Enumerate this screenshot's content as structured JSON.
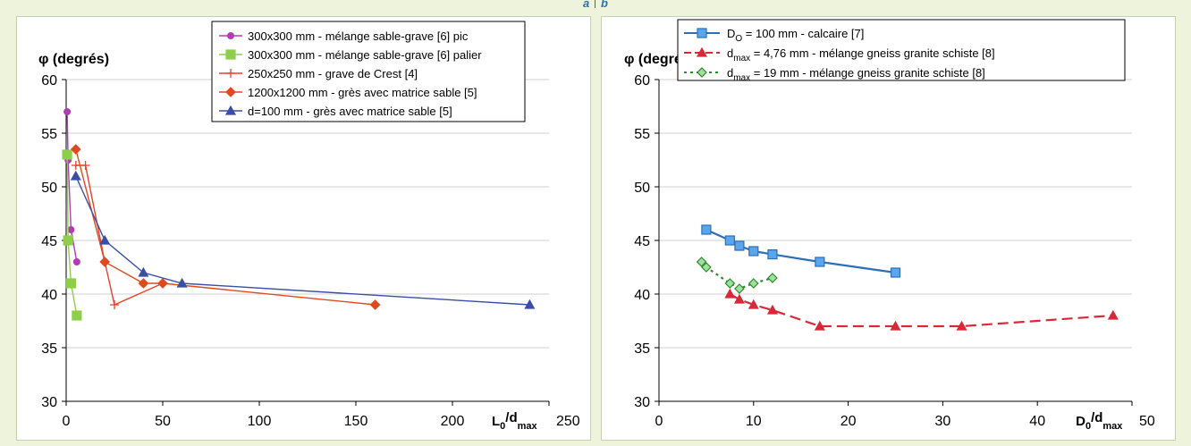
{
  "panel_labels": {
    "left": "a",
    "right": "b"
  },
  "chart_data": [
    {
      "type": "line",
      "ylabel": "φ (degrés)",
      "xlabel_main": "L",
      "xlabel_sub0": "0",
      "xlabel_mid": "/d",
      "xlabel_sub1": "max",
      "xlim": [
        0,
        250
      ],
      "ylim": [
        30,
        60
      ],
      "xticks": [
        0,
        50,
        100,
        150,
        200,
        250
      ],
      "yticks": [
        30,
        35,
        40,
        45,
        50,
        55,
        60
      ],
      "grid": true,
      "legend_position": "top-right",
      "series": [
        {
          "name": "300x300 mm - mélange sable-grave [6] pic",
          "color": "#b33bb3",
          "marker": "circle",
          "x": [
            0.5,
            1,
            2.5,
            5.5
          ],
          "y": [
            57,
            52.5,
            46,
            43
          ]
        },
        {
          "name": "300x300 mm - mélange sable-grave [6] palier",
          "color": "#8fce4a",
          "marker": "square",
          "x": [
            0.5,
            1,
            2.5,
            5.5
          ],
          "y": [
            53,
            45,
            41,
            38
          ]
        },
        {
          "name": "250x250 mm - grave de Crest [4]",
          "color": "#e8412a",
          "marker": "plus",
          "x": [
            5,
            10,
            20,
            25,
            50
          ],
          "y": [
            52,
            52,
            43,
            39,
            41
          ]
        },
        {
          "name": "1200x1200 mm - grès avec matrice sable [5]",
          "color": "#e04a1f",
          "marker": "diamond",
          "x": [
            5,
            20,
            40,
            50,
            160
          ],
          "y": [
            53.5,
            43,
            41,
            41,
            39
          ]
        },
        {
          "name": "d=100 mm - grès avec matrice sable [5]",
          "color": "#3a4ea8",
          "marker": "triangle",
          "x": [
            5,
            20,
            40,
            60,
            240
          ],
          "y": [
            51,
            45,
            42,
            41,
            39
          ]
        }
      ]
    },
    {
      "type": "line",
      "ylabel": "φ (degrés)",
      "xlabel_main": "D",
      "xlabel_sub0": "0",
      "xlabel_mid": "/d",
      "xlabel_sub1": "max",
      "xlim": [
        0,
        50
      ],
      "ylim": [
        30,
        60
      ],
      "xticks": [
        0,
        10,
        20,
        30,
        40,
        50
      ],
      "yticks": [
        30,
        35,
        40,
        45,
        50,
        55,
        60
      ],
      "grid": true,
      "legend_position": "top",
      "series": [
        {
          "name_main": "D",
          "name_sub": "O",
          "name_rest": " = 100 mm - calcaire [7]",
          "color": "#2c6fb8",
          "fill": "#5aa6ea",
          "marker": "square",
          "dash": "",
          "x": [
            5,
            7.5,
            8.5,
            10,
            12,
            17,
            25
          ],
          "y": [
            46,
            45,
            44.5,
            44,
            43.7,
            43,
            42
          ]
        },
        {
          "name_main": "d",
          "name_sub": "max",
          "name_rest": " = 4,76 mm - mélange gneiss granite schiste [8]",
          "color": "#d8283a",
          "fill": "#d8283a",
          "marker": "triangle",
          "dash": "12,6",
          "x": [
            7.5,
            8.5,
            10,
            12,
            17,
            25,
            32,
            48
          ],
          "y": [
            40,
            39.5,
            39,
            38.5,
            37,
            37,
            37,
            38
          ]
        },
        {
          "name_main": "d",
          "name_sub": "max",
          "name_rest": " = 19 mm - mélange gneiss granite schiste [8]",
          "color": "#2e8a2e",
          "fill": "#9fe09f",
          "marker": "diamond",
          "dash": "3,4",
          "x": [
            4.5,
            5,
            7.5,
            8.5,
            10,
            12
          ],
          "y": [
            43,
            42.5,
            41,
            40.5,
            41,
            41.5
          ]
        }
      ]
    }
  ]
}
